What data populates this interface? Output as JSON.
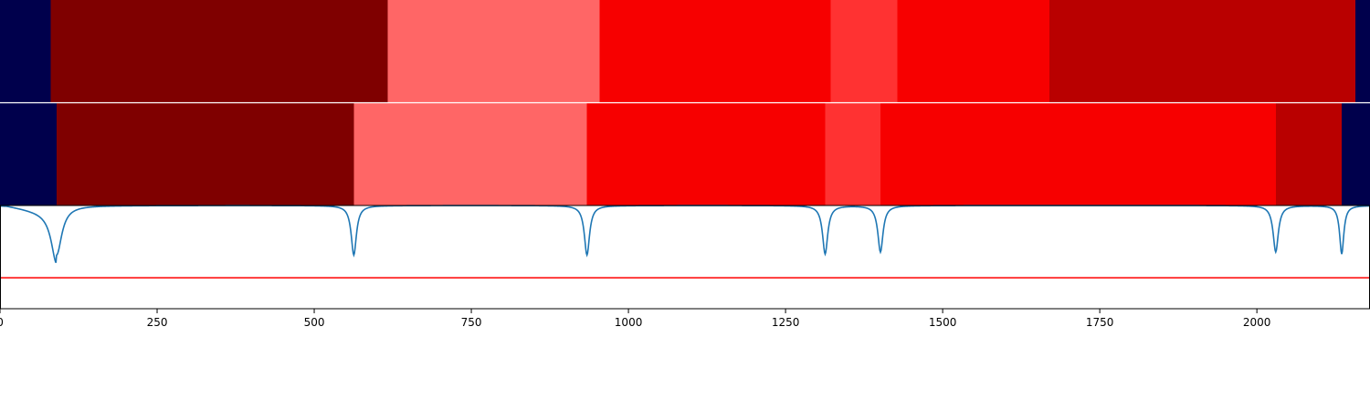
{
  "chart_data": {
    "type": "heatmap",
    "title": "",
    "xlabel": "",
    "ylabel": "",
    "xlim": [
      0,
      2180
    ],
    "grid": false,
    "xticks": [
      {
        "value": 0,
        "label": "0"
      },
      {
        "value": 250,
        "label": "250"
      },
      {
        "value": 500,
        "label": "500"
      },
      {
        "value": 750,
        "label": "750"
      },
      {
        "value": 1000,
        "label": "1000"
      },
      {
        "value": 1250,
        "label": "1250"
      },
      {
        "value": 1500,
        "label": "1500"
      },
      {
        "value": 1750,
        "label": "1750"
      },
      {
        "value": 2000,
        "label": "2000"
      }
    ],
    "rows": [
      {
        "segments": [
          {
            "start": 0,
            "end": 81,
            "color": "#00004c"
          },
          {
            "start": 81,
            "end": 617,
            "color": "#7f0000"
          },
          {
            "start": 617,
            "end": 954,
            "color": "#ff6666"
          },
          {
            "start": 954,
            "end": 1322,
            "color": "#f70000"
          },
          {
            "start": 1322,
            "end": 1428,
            "color": "#ff3232"
          },
          {
            "start": 1428,
            "end": 1670,
            "color": "#f70000"
          },
          {
            "start": 1670,
            "end": 2157,
            "color": "#b90000"
          },
          {
            "start": 2157,
            "end": 2180,
            "color": "#00004c"
          }
        ]
      },
      {
        "segments": [
          {
            "start": 0,
            "end": 90,
            "color": "#00004c"
          },
          {
            "start": 90,
            "end": 563,
            "color": "#7f0000"
          },
          {
            "start": 563,
            "end": 934,
            "color": "#ff6666"
          },
          {
            "start": 934,
            "end": 1313,
            "color": "#f70000"
          },
          {
            "start": 1313,
            "end": 1401,
            "color": "#ff3232"
          },
          {
            "start": 1401,
            "end": 2030,
            "color": "#f70000"
          },
          {
            "start": 2030,
            "end": 2135,
            "color": "#b90000"
          },
          {
            "start": 2135,
            "end": 2180,
            "color": "#00004c"
          }
        ]
      }
    ],
    "signal_panel": {
      "series_color": "#1f77b4",
      "threshold_color": "#ff0000",
      "threshold": 0.3,
      "ylim": [
        0,
        1
      ],
      "baseline": 1.0,
      "dips": [
        {
          "x": 90,
          "depth": 0.48,
          "width": 10
        },
        {
          "x": 563,
          "depth": 0.48,
          "width": 5
        },
        {
          "x": 934,
          "depth": 0.48,
          "width": 5
        },
        {
          "x": 1313,
          "depth": 0.47,
          "width": 5
        },
        {
          "x": 1401,
          "depth": 0.45,
          "width": 5
        },
        {
          "x": 2030,
          "depth": 0.45,
          "width": 5
        },
        {
          "x": 2135,
          "depth": 0.47,
          "width": 4
        }
      ]
    }
  }
}
